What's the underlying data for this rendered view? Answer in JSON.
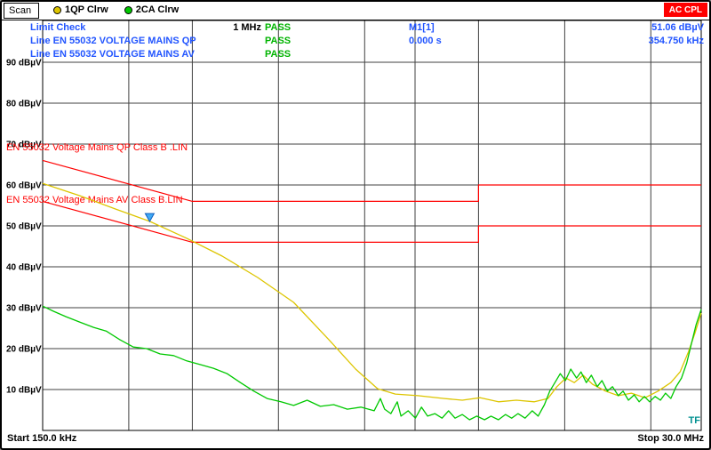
{
  "colors": {
    "blue": "#2255ff",
    "status_green": "#00b400",
    "red": "#ff0000",
    "trace_yellow": "#ddc500",
    "trace_green": "#00c800",
    "teal": "#009090",
    "grid": "#404040"
  },
  "header": {
    "mode_label": "Scan",
    "traces": [
      {
        "label": "1QP Clrw"
      },
      {
        "label": "2CA Clrw"
      }
    ],
    "coupling_badge": "AC CPL"
  },
  "info": {
    "rows": [
      {
        "label": "Limit Check",
        "mid": "1 MHz",
        "status": "PASS",
        "marker": "M1[1]",
        "value": "51.06 dBµV"
      },
      {
        "label": "Line EN 55032 VOLTAGE MAINS QP",
        "mid": "",
        "status": "PASS",
        "marker": "0.000 s",
        "value": "354.750 kHz"
      },
      {
        "label": "Line EN 55032 VOLTAGE MAINS AV",
        "mid": "",
        "status": "PASS",
        "marker": "",
        "value": ""
      }
    ]
  },
  "footer": {
    "start": "Start 150.0 kHz",
    "stop": "Stop 30.0 MHz",
    "tf_label": "TF"
  },
  "chart_data": {
    "type": "line",
    "title": "",
    "grid_color": "#404040",
    "limit_color": "#ff0000",
    "x_axis": {
      "scale": "log",
      "unit": "MHz",
      "start_mhz": 0.15,
      "stop_mhz": 30,
      "start_label": "Start 150.0 kHz",
      "stop_label": "Stop 30.0 MHz",
      "gridlines_mhz": [
        0.3,
        0.5,
        1,
        2,
        3,
        5,
        10,
        20
      ]
    },
    "y_axis": {
      "unit": "dBµV",
      "min": 0,
      "max": 100,
      "ticks": [
        {
          "db": 90,
          "label": "90 dBµV"
        },
        {
          "db": 80,
          "label": "80 dBµV"
        },
        {
          "db": 70,
          "label": "70 dBµV"
        },
        {
          "db": 60,
          "label": "60 dBµV"
        },
        {
          "db": 50,
          "label": "50 dBµV"
        },
        {
          "db": 40,
          "label": "40 dBµV"
        },
        {
          "db": 30,
          "label": "30 dBµV"
        },
        {
          "db": 20,
          "label": "20 dBµV"
        },
        {
          "db": 10,
          "label": "10 dBµV"
        }
      ]
    },
    "limits": [
      {
        "name": "EN 55032 Voltage Mains QP Class B .LIN",
        "label_db": 68.5,
        "check": "PASS",
        "points": [
          [
            0.15,
            66
          ],
          [
            0.5,
            56
          ],
          [
            5,
            56
          ],
          [
            5,
            60
          ],
          [
            30,
            60
          ]
        ]
      },
      {
        "name": "EN 55032 Voltage Mains AV Class B.LIN",
        "label_db": 55.6,
        "check": "PASS",
        "points": [
          [
            0.15,
            56
          ],
          [
            0.5,
            46
          ],
          [
            5,
            46
          ],
          [
            5,
            50
          ],
          [
            30,
            50
          ]
        ]
      }
    ],
    "marker": {
      "name": "M1[1]",
      "freq_mhz": 0.35475,
      "level_db": 51.06,
      "delta_time": "0.000 s",
      "color": "#3fa9f5",
      "stroke": "#1060c0"
    },
    "series": [
      {
        "name": "1QP",
        "detector": "quasi-peak",
        "color": "#ddc500",
        "points": [
          [
            0.15,
            60.4
          ],
          [
            0.202,
            57.4
          ],
          [
            0.27,
            54.1
          ],
          [
            0.3548,
            51.1
          ],
          [
            0.477,
            47.0
          ],
          [
            0.636,
            42.6
          ],
          [
            0.846,
            37.4
          ],
          [
            1.13,
            31.3
          ],
          [
            1.5,
            22.2
          ],
          [
            1.86,
            15.0
          ],
          [
            2.22,
            10.2
          ],
          [
            2.56,
            8.9
          ],
          [
            3.07,
            8.5
          ],
          [
            3.8,
            7.8
          ],
          [
            4.39,
            7.4
          ],
          [
            5.07,
            8.0
          ],
          [
            5.87,
            7.0
          ],
          [
            6.78,
            7.4
          ],
          [
            7.84,
            7.0
          ],
          [
            8.74,
            7.8
          ],
          [
            9.39,
            10.7
          ],
          [
            10.1,
            12.8
          ],
          [
            10.8,
            11.7
          ],
          [
            11.6,
            13.5
          ],
          [
            12.5,
            11.3
          ],
          [
            13.9,
            9.6
          ],
          [
            15.4,
            8.5
          ],
          [
            17.1,
            9.1
          ],
          [
            19.1,
            8.0
          ],
          [
            21.2,
            9.6
          ],
          [
            23.5,
            11.7
          ],
          [
            25.3,
            14.3
          ],
          [
            27.1,
            19.3
          ],
          [
            28.5,
            23.7
          ],
          [
            30,
            28.7
          ]
        ]
      },
      {
        "name": "2CA",
        "detector": "average",
        "color": "#00c800",
        "points": [
          [
            0.15,
            30.4
          ],
          [
            0.164,
            29.1
          ],
          [
            0.181,
            27.8
          ],
          [
            0.202,
            26.5
          ],
          [
            0.226,
            25.2
          ],
          [
            0.25,
            24.3
          ],
          [
            0.279,
            22.2
          ],
          [
            0.311,
            20.4
          ],
          [
            0.346,
            20.0
          ],
          [
            0.386,
            18.7
          ],
          [
            0.43,
            18.3
          ],
          [
            0.478,
            17.0
          ],
          [
            0.532,
            16.1
          ],
          [
            0.593,
            15.2
          ],
          [
            0.661,
            13.9
          ],
          [
            0.736,
            11.7
          ],
          [
            0.82,
            9.6
          ],
          [
            0.913,
            7.8
          ],
          [
            1.02,
            7.0
          ],
          [
            1.13,
            6.1
          ],
          [
            1.26,
            7.4
          ],
          [
            1.4,
            5.9
          ],
          [
            1.56,
            6.3
          ],
          [
            1.74,
            5.2
          ],
          [
            1.94,
            5.7
          ],
          [
            2.16,
            4.8
          ],
          [
            2.27,
            7.8
          ],
          [
            2.35,
            5.2
          ],
          [
            2.47,
            4.1
          ],
          [
            2.6,
            7.0
          ],
          [
            2.68,
            3.5
          ],
          [
            2.84,
            4.8
          ],
          [
            3.01,
            3.0
          ],
          [
            3.16,
            5.7
          ],
          [
            3.32,
            3.5
          ],
          [
            3.52,
            4.1
          ],
          [
            3.73,
            3.0
          ],
          [
            3.93,
            4.8
          ],
          [
            4.14,
            3.0
          ],
          [
            4.39,
            3.9
          ],
          [
            4.65,
            2.6
          ],
          [
            4.93,
            3.5
          ],
          [
            5.25,
            2.6
          ],
          [
            5.53,
            3.5
          ],
          [
            5.87,
            2.6
          ],
          [
            6.21,
            3.9
          ],
          [
            6.53,
            3.0
          ],
          [
            6.87,
            4.1
          ],
          [
            7.27,
            3.0
          ],
          [
            7.7,
            4.8
          ],
          [
            8.08,
            3.5
          ],
          [
            8.5,
            6.3
          ],
          [
            8.87,
            9.6
          ],
          [
            9.25,
            11.7
          ],
          [
            9.65,
            13.9
          ],
          [
            10.06,
            12.2
          ],
          [
            10.5,
            15.0
          ],
          [
            11.0,
            12.8
          ],
          [
            11.4,
            14.3
          ],
          [
            11.9,
            11.7
          ],
          [
            12.4,
            13.5
          ],
          [
            13.0,
            10.7
          ],
          [
            13.5,
            12.2
          ],
          [
            14.1,
            9.6
          ],
          [
            14.7,
            10.7
          ],
          [
            15.4,
            8.5
          ],
          [
            16.0,
            9.6
          ],
          [
            16.7,
            7.4
          ],
          [
            17.5,
            8.7
          ],
          [
            18.2,
            7.0
          ],
          [
            19.0,
            8.3
          ],
          [
            19.8,
            7.0
          ],
          [
            20.7,
            8.3
          ],
          [
            21.6,
            7.4
          ],
          [
            22.5,
            9.1
          ],
          [
            23.5,
            7.8
          ],
          [
            24.5,
            10.7
          ],
          [
            25.6,
            12.8
          ],
          [
            26.7,
            16.5
          ],
          [
            27.8,
            21.5
          ],
          [
            28.8,
            25.9
          ],
          [
            30,
            29.6
          ]
        ]
      }
    ]
  }
}
